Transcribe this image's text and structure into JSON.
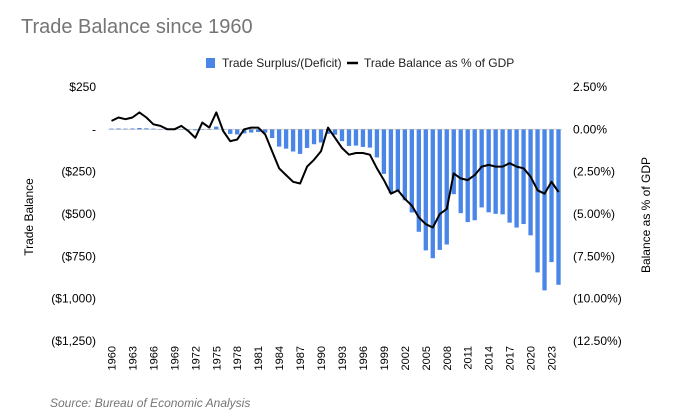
{
  "chart_data": {
    "type": "bar+line",
    "title": "Trade Balance since 1960",
    "source": "Source: Bureau of Economic Analysis",
    "xlabel": "",
    "ylabel": "Trade Balance",
    "y2label": "Balance as % of GDP",
    "ylim": [
      -1250,
      250
    ],
    "y2lim": [
      -12.5,
      2.5
    ],
    "yticks": [
      {
        "v": 250,
        "label": "$250"
      },
      {
        "v": 0,
        "label": "-"
      },
      {
        "v": -250,
        "label": "($250)"
      },
      {
        "v": -500,
        "label": "($500)"
      },
      {
        "v": -750,
        "label": "($750)"
      },
      {
        "v": -1000,
        "label": "($1,000)"
      },
      {
        "v": -1250,
        "label": "($1,250)"
      }
    ],
    "y2ticks": [
      {
        "v": 2.5,
        "label": "2.50%"
      },
      {
        "v": 0,
        "label": "0.00%"
      },
      {
        "v": -2.5,
        "label": "(2.50%)"
      },
      {
        "v": -5,
        "label": "(5.00%)"
      },
      {
        "v": -7.5,
        "label": "(7.50%)"
      },
      {
        "v": -10,
        "label": "(10.00%)"
      },
      {
        "v": -12.5,
        "label": "(12.50%)"
      }
    ],
    "xtick_labels": [
      "1960",
      "1963",
      "1966",
      "1969",
      "1972",
      "1975",
      "1978",
      "1981",
      "1984",
      "1987",
      "1990",
      "1993",
      "1996",
      "1999",
      "2002",
      "2005",
      "2008",
      "2011",
      "2014",
      "2017",
      "2020",
      "2023"
    ],
    "years": [
      1960,
      1961,
      1962,
      1963,
      1964,
      1965,
      1966,
      1967,
      1968,
      1969,
      1970,
      1971,
      1972,
      1973,
      1974,
      1975,
      1976,
      1977,
      1978,
      1979,
      1980,
      1981,
      1982,
      1983,
      1984,
      1985,
      1986,
      1987,
      1988,
      1989,
      1990,
      1991,
      1992,
      1993,
      1994,
      1995,
      1996,
      1997,
      1998,
      1999,
      2000,
      2001,
      2002,
      2003,
      2004,
      2005,
      2006,
      2007,
      2008,
      2009,
      2010,
      2011,
      2012,
      2013,
      2014,
      2015,
      2016,
      2017,
      2018,
      2019,
      2020,
      2021,
      2022,
      2023,
      2024
    ],
    "series": [
      {
        "name": "Trade Surplus/(Deficit)",
        "type": "bar",
        "color": "#4a86e8",
        "axis": "left",
        "values": [
          4,
          5,
          4,
          5,
          8,
          6,
          4,
          2,
          0,
          0,
          2,
          -1,
          -6,
          2,
          -3,
          16,
          -2,
          -27,
          -30,
          -24,
          -19,
          -16,
          -20,
          -51,
          -102,
          -114,
          -131,
          -145,
          -110,
          -88,
          -78,
          -27,
          -32,
          -70,
          -98,
          -96,
          -104,
          -108,
          -166,
          -263,
          -378,
          -362,
          -419,
          -491,
          -605,
          -715,
          -761,
          -712,
          -680,
          -383,
          -495,
          -548,
          -537,
          -461,
          -490,
          -499,
          -502,
          -551,
          -580,
          -559,
          -626,
          -845,
          -951,
          -784,
          -918
        ]
      },
      {
        "name": "Trade Balance as % of GDP",
        "type": "line",
        "color": "#000000",
        "axis": "right",
        "values": [
          0.5,
          0.7,
          0.6,
          0.7,
          1.0,
          0.7,
          0.3,
          0.2,
          0.0,
          0.0,
          0.2,
          -0.1,
          -0.5,
          0.4,
          0.1,
          1.0,
          -0.1,
          -0.7,
          -0.6,
          0.0,
          0.1,
          0.1,
          -0.3,
          -1.3,
          -2.3,
          -2.7,
          -3.1,
          -3.2,
          -2.2,
          -1.8,
          -1.3,
          0.1,
          -0.5,
          -1.1,
          -1.5,
          -1.4,
          -1.4,
          -1.5,
          -2.3,
          -3.0,
          -3.8,
          -3.6,
          -4.1,
          -4.5,
          -5.2,
          -5.6,
          -5.8,
          -5.0,
          -4.7,
          -2.6,
          -2.9,
          -3.0,
          -2.7,
          -2.2,
          -2.1,
          -2.2,
          -2.2,
          -2.0,
          -2.2,
          -2.3,
          -2.8,
          -3.6,
          -3.8,
          -3.1,
          -3.7
        ]
      }
    ],
    "legend": {
      "position": "top",
      "labels": [
        "Trade Surplus/(Deficit)",
        "Trade Balance as % of GDP"
      ]
    }
  }
}
